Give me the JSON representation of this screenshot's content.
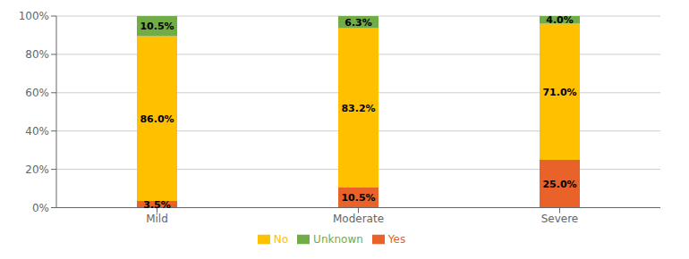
{
  "chart_data": {
    "type": "bar",
    "categories": [
      "Mild",
      "Moderate",
      "Severe"
    ],
    "series": [
      {
        "name": "Yes",
        "color": "#E8622A",
        "values": [
          3.5,
          10.5,
          25.0
        ],
        "value_labels": [
          "3.5%",
          "10.5%",
          "25.0%"
        ]
      },
      {
        "name": "No",
        "color": "#FFC000",
        "values": [
          86.0,
          83.2,
          71.0
        ],
        "value_labels": [
          "86.0%",
          "83.2%",
          "71.0%"
        ]
      },
      {
        "name": "Unknown",
        "color": "#70AD47",
        "values": [
          10.5,
          6.3,
          4.0
        ],
        "value_labels": [
          "10.5%",
          "6.3%",
          "4.0%"
        ]
      }
    ],
    "ylim": [
      0,
      100
    ],
    "yticks": [
      {
        "value": 0,
        "label": "0%"
      },
      {
        "value": 20,
        "label": "20%"
      },
      {
        "value": 40,
        "label": "40%"
      },
      {
        "value": 60,
        "label": "60%"
      },
      {
        "value": 80,
        "label": "80%"
      },
      {
        "value": 100,
        "label": "100%"
      }
    ],
    "grid": true,
    "stacked": true,
    "data_labels": true,
    "legend": "bottom"
  }
}
